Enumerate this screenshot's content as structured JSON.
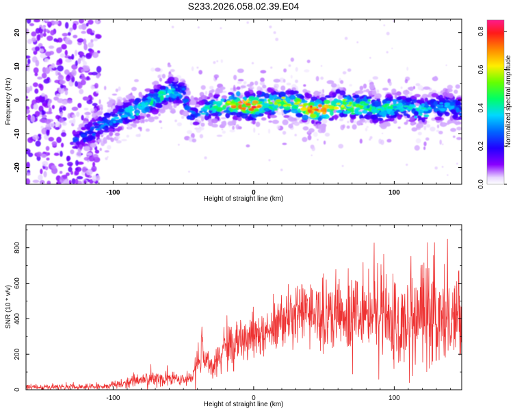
{
  "title": "S233.2026.058.02.39.E04",
  "chart_data": [
    {
      "type": "heatmap",
      "title": "S233.2026.058.02.39.E04",
      "xlabel": "Height of straight line (km)",
      "ylabel": "Frequency (Hz)",
      "xlim": [
        -162,
        148
      ],
      "ylim": [
        -25,
        24
      ],
      "xticks": [
        -100,
        0,
        100
      ],
      "xtick_labels": [
        "-100",
        "0",
        "100"
      ],
      "yticks": [
        -20,
        -10,
        0,
        10,
        20
      ],
      "ytick_labels": [
        "-20",
        "-10",
        "0",
        "10",
        "20"
      ],
      "colorbar": {
        "label": "Normalized spectral amplitude",
        "range": [
          0,
          0.86
        ],
        "ticks": [
          0.0,
          0.2,
          0.4,
          0.6,
          0.8
        ],
        "tick_labels": [
          "0.0",
          "0.2",
          "0.4",
          "0.6",
          "0.8"
        ]
      },
      "ridge": {
        "x": [
          -125,
          -110,
          -100,
          -90,
          -80,
          -70,
          -60,
          -50,
          -45,
          -40,
          -30,
          -20,
          -10,
          0,
          10,
          20,
          30,
          40,
          50,
          60,
          70,
          80,
          90,
          100,
          110,
          120,
          130,
          140,
          148
        ],
        "freq": [
          -12,
          -8,
          -6,
          -4,
          -2,
          0,
          3,
          2,
          -5,
          -4,
          -2,
          -2,
          -1,
          -2,
          -1,
          -1,
          -1,
          -3,
          -3,
          -1,
          -2,
          -2,
          -3,
          -2,
          -2,
          -3,
          -2,
          -2,
          -3
        ],
        "peak_amplitude": [
          0.25,
          0.3,
          0.35,
          0.4,
          0.4,
          0.45,
          0.45,
          0.3,
          0.3,
          0.3,
          0.45,
          0.55,
          0.85,
          0.8,
          0.55,
          0.6,
          0.55,
          0.75,
          0.7,
          0.65,
          0.55,
          0.5,
          0.45,
          0.45,
          0.4,
          0.4,
          0.35,
          0.35,
          0.3
        ]
      },
      "noise_region_x": [
        -162,
        -120
      ]
    },
    {
      "type": "line",
      "xlabel": "Height of straight line (km)",
      "ylabel": "SNR (10 * v/v)",
      "color": "#ee3333",
      "xlim": [
        -162,
        148
      ],
      "ylim": [
        0,
        930
      ],
      "xticks": [
        -100,
        0,
        100
      ],
      "xtick_labels": [
        "-100",
        "0",
        "100"
      ],
      "yticks": [
        0,
        200,
        400,
        600,
        800
      ],
      "ytick_labels": [
        "0",
        "200",
        "400",
        "600",
        "800"
      ],
      "envelope": {
        "x": [
          -162,
          -120,
          -100,
          -90,
          -80,
          -60,
          -45,
          -36,
          -32,
          -28,
          -20,
          -10,
          0,
          10,
          20,
          30,
          40,
          50,
          60,
          80,
          100,
          120,
          140,
          148
        ],
        "mean": [
          15,
          15,
          25,
          40,
          60,
          60,
          60,
          200,
          150,
          120,
          250,
          260,
          300,
          320,
          380,
          430,
          430,
          420,
          420,
          430,
          430,
          420,
          400,
          400
        ],
        "spread": [
          15,
          15,
          20,
          30,
          40,
          40,
          30,
          120,
          80,
          60,
          100,
          100,
          110,
          120,
          140,
          160,
          180,
          190,
          200,
          220,
          240,
          260,
          280,
          280
        ]
      }
    }
  ]
}
